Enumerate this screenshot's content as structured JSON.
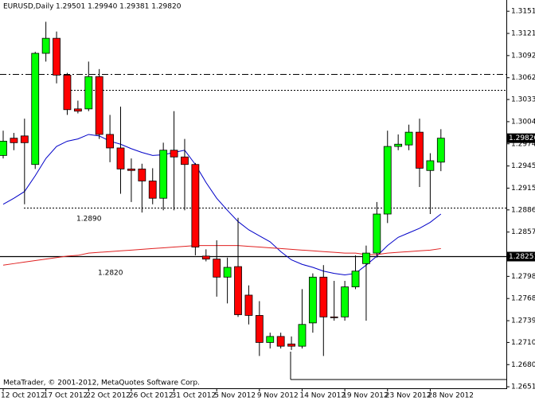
{
  "chart_data": {
    "type": "candlestick",
    "title": "EURUSD,Daily",
    "subtitle": "1.29501 1.29940 1.29381 1.29820",
    "footer": "MetaTrader, © 2001-2012, MetaQuotes Software Corp.",
    "categories": [
      "12 Oct 2012",
      null,
      null,
      null,
      "17 Oct 2012",
      null,
      null,
      null,
      "22 Oct 2012",
      null,
      null,
      null,
      "26 Oct 2012",
      null,
      null,
      null,
      "31 Oct 2012",
      null,
      null,
      null,
      "5 Nov 2012",
      null,
      null,
      null,
      "9 Nov 2012",
      null,
      null,
      null,
      "14 Nov 2012",
      null,
      null,
      null,
      "19 Nov 2012",
      null,
      null,
      null,
      "23 Nov 2012",
      null,
      null,
      null,
      "28 Nov 2012",
      null
    ],
    "open": [
      1.2959,
      1.2982,
      1.2985,
      1.2947,
      1.3095,
      1.3115,
      1.3066,
      1.3021,
      1.3021,
      1.3064,
      1.2987,
      1.2969,
      1.2941,
      1.2941,
      1.2925,
      1.2902,
      1.2966,
      1.2957,
      1.2947,
      1.2825,
      1.2821,
      1.2797,
      1.2811,
      1.2773,
      1.2746,
      1.271,
      1.2718,
      1.2708,
      1.2705,
      1.2736,
      1.2797,
      1.2744,
      1.2744,
      1.2784,
      1.2815,
      1.2829,
      1.2881,
      1.2971,
      1.2973,
      1.299,
      1.2939,
      1.29501
    ],
    "high": [
      1.2992,
      1.2989,
      1.3008,
      1.3097,
      1.3137,
      1.3124,
      1.3069,
      1.3032,
      1.3084,
      1.3074,
      1.3013,
      1.3024,
      1.2955,
      1.2948,
      1.2942,
      1.2976,
      1.3018,
      1.2981,
      1.2949,
      1.2834,
      1.2846,
      1.2823,
      1.2876,
      1.2786,
      1.2765,
      1.2723,
      1.2723,
      1.2718,
      1.2781,
      1.2802,
      1.2813,
      1.2792,
      1.2792,
      1.2826,
      1.2839,
      1.2897,
      1.2992,
      1.2987,
      1.3,
      1.3008,
      1.2962,
      1.2994
    ],
    "low": [
      1.2955,
      1.2966,
      1.2894,
      1.2941,
      1.3084,
      1.3055,
      1.3013,
      1.3015,
      1.3018,
      1.2981,
      1.295,
      1.2908,
      1.2897,
      1.2883,
      1.2894,
      1.2886,
      1.2886,
      1.2886,
      1.2826,
      1.2818,
      1.2771,
      1.2762,
      1.2744,
      1.2734,
      1.2692,
      1.2702,
      1.2702,
      1.27,
      1.2702,
      1.2723,
      1.2692,
      1.2739,
      1.2739,
      1.2781,
      1.2739,
      1.2823,
      1.2869,
      1.2966,
      1.2966,
      1.2917,
      1.2881,
      1.29381
    ],
    "close": [
      1.2978,
      1.2976,
      1.2976,
      1.3095,
      1.3115,
      1.3066,
      1.302,
      1.3018,
      1.3064,
      1.2987,
      1.2969,
      1.2941,
      1.2939,
      1.2925,
      1.2902,
      1.2966,
      1.2957,
      1.2947,
      1.2837,
      1.2821,
      1.2797,
      1.281,
      1.2747,
      1.2746,
      1.271,
      1.2718,
      1.2705,
      1.2705,
      1.2734,
      1.2797,
      1.2744,
      1.2743,
      1.2784,
      1.2805,
      1.2829,
      1.2881,
      1.2971,
      1.2974,
      1.299,
      1.2942,
      1.2952,
      1.2982
    ],
    "up_color": "#00ff00",
    "down_color": "#ff0000",
    "lines": [
      {
        "color": "#0000c8",
        "values": [
          1.2894,
          1.2902,
          1.2911,
          1.2932,
          1.2955,
          1.2971,
          1.2978,
          1.2981,
          1.2987,
          1.2985,
          1.2978,
          1.2974,
          1.2968,
          1.2963,
          1.2959,
          1.296,
          1.2963,
          1.2966,
          1.2947,
          1.2923,
          1.2902,
          1.2886,
          1.2871,
          1.286,
          1.2852,
          1.2844,
          1.2831,
          1.282,
          1.2814,
          1.281,
          1.2805,
          1.2802,
          1.28,
          1.2802,
          1.2813,
          1.2825,
          1.2839,
          1.285,
          1.2856,
          1.2862,
          1.287,
          1.2881
        ]
      },
      {
        "color": "#e02020",
        "values": [
          1.2813,
          1.2815,
          1.2817,
          1.2819,
          1.2821,
          1.2823,
          1.2825,
          1.2826,
          1.2829,
          1.283,
          1.2831,
          1.2832,
          1.2833,
          1.2834,
          1.2835,
          1.2836,
          1.2837,
          1.2838,
          1.2839,
          1.2839,
          1.2839,
          1.2839,
          1.2839,
          1.2838,
          1.2837,
          1.2836,
          1.2835,
          1.2834,
          1.2833,
          1.2832,
          1.2831,
          1.283,
          1.2829,
          1.2829,
          1.2827,
          1.2827,
          1.2829,
          1.283,
          1.2831,
          1.2832,
          1.2833,
          1.2835
        ]
      }
    ],
    "levels": [
      {
        "value": 1.3068,
        "style": "dashdot"
      },
      {
        "value": 1.3046,
        "style": "dotted"
      },
      {
        "value": 1.289,
        "style": "dotted"
      },
      {
        "value": 1.28251,
        "style": "solid",
        "label": "1.28251"
      }
    ],
    "annotations": [
      {
        "text": "1.2890"
      },
      {
        "text": "1.2820"
      }
    ],
    "price_marker": {
      "value": 1.2982,
      "label": "1.29820"
    },
    "ylim": [
      1.2649,
      1.3166
    ],
    "yticks": [
      {
        "value": 1.3151,
        "label": "1.31510"
      },
      {
        "value": 1.31215,
        "label": "1.31215"
      },
      {
        "value": 1.3092,
        "label": "1.30920"
      },
      {
        "value": 1.30625,
        "label": "1.30625"
      },
      {
        "value": 1.30335,
        "label": "1.30335"
      },
      {
        "value": 1.3004,
        "label": "1.30040"
      },
      {
        "value": 1.29745,
        "label": "1.29745"
      },
      {
        "value": 1.2945,
        "label": "1.29450"
      },
      {
        "value": 1.29155,
        "label": "1.29155"
      },
      {
        "value": 1.28865,
        "label": "1.28865"
      },
      {
        "value": 1.2857,
        "label": "1.28570"
      },
      {
        "value": 1.2798,
        "label": "1.27980"
      },
      {
        "value": 1.27685,
        "label": "1.27685"
      },
      {
        "value": 1.2739,
        "label": "1.27390"
      },
      {
        "value": 1.271,
        "label": "1.27100"
      },
      {
        "value": 1.26805,
        "label": "1.26805"
      },
      {
        "value": 1.2651,
        "label": "1.26510"
      }
    ]
  }
}
